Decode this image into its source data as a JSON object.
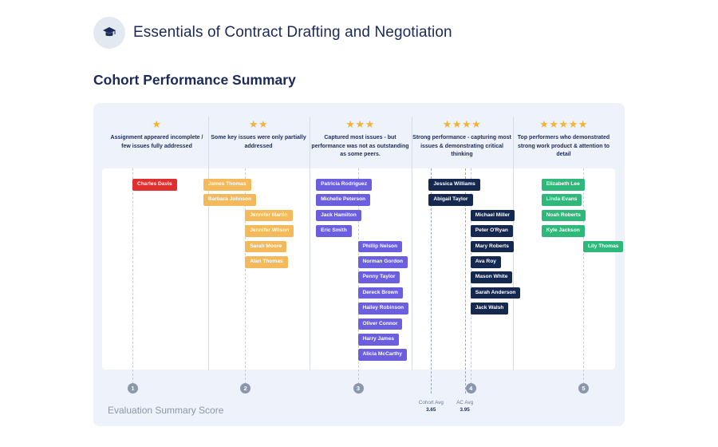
{
  "header": {
    "title": "Essentials of Contract Drafting and Negotiation",
    "icon": "graduation-cap-icon"
  },
  "section_title": "Cohort Performance Summary",
  "chart_data": {
    "type": "scatter",
    "xlabel": "Evaluation Summary Score",
    "x_ticks": [
      1,
      2,
      3,
      4,
      5
    ],
    "columns": [
      {
        "stars": "★",
        "star_count": 1,
        "text": "Assignment appeared incomplete / few issues fully addressed",
        "color": "#e02f2f"
      },
      {
        "stars": "★★",
        "star_count": 2,
        "text": "Some key issues were only partially addressed",
        "color": "#f3b95a"
      },
      {
        "stars": "★★★",
        "star_count": 3,
        "text": "Captured most issues - but performance was not as outstanding as some peers.",
        "color": "#6b5fe0"
      },
      {
        "stars": "★★★★",
        "star_count": 4,
        "text": "Strong performance - capturing most issues & demonstrating critical thinking",
        "color": "#152850"
      },
      {
        "stars": "★★★★★",
        "star_count": 5,
        "text": "Top performers who demonstrated strong work product & attention to detail",
        "color": "#2eb87a"
      }
    ],
    "points": [
      {
        "name": "Charles Davis",
        "score": 1.0,
        "band": 1
      },
      {
        "name": "James Thomas",
        "score": 1.7,
        "band": 2
      },
      {
        "name": "Barbara Johnson",
        "score": 1.7,
        "band": 2
      },
      {
        "name": "Jennifer Martin",
        "score": 2.0,
        "band": 2
      },
      {
        "name": "Jennifer Wilson",
        "score": 2.0,
        "band": 2
      },
      {
        "name": "Sarah Moore",
        "score": 2.0,
        "band": 2
      },
      {
        "name": "Alan Thomas",
        "score": 2.0,
        "band": 2
      },
      {
        "name": "Patricia Rodriguez",
        "score": 2.7,
        "band": 3
      },
      {
        "name": "Michelle Peterson",
        "score": 2.7,
        "band": 3
      },
      {
        "name": "Jack Hamilton",
        "score": 2.7,
        "band": 3
      },
      {
        "name": "Eric Smith",
        "score": 2.7,
        "band": 3
      },
      {
        "name": "Phillip Nelson",
        "score": 3.0,
        "band": 3
      },
      {
        "name": "Norman Gordon",
        "score": 3.0,
        "band": 3
      },
      {
        "name": "Penny Taylor",
        "score": 3.0,
        "band": 3
      },
      {
        "name": "Dereck Brown",
        "score": 3.0,
        "band": 3
      },
      {
        "name": "Hailey Robinson",
        "score": 3.0,
        "band": 3
      },
      {
        "name": "Oliver Connor",
        "score": 3.0,
        "band": 3
      },
      {
        "name": "Harry James",
        "score": 3.0,
        "band": 3
      },
      {
        "name": "Alicia McCarthy",
        "score": 3.0,
        "band": 3
      },
      {
        "name": "Jessica Williams",
        "score": 3.7,
        "band": 4
      },
      {
        "name": "Abigail Taylor",
        "score": 3.7,
        "band": 4
      },
      {
        "name": "Michael Miller",
        "score": 4.0,
        "band": 4
      },
      {
        "name": "Peter O'Ryan",
        "score": 4.0,
        "band": 4
      },
      {
        "name": "Mary Roberts",
        "score": 4.0,
        "band": 4
      },
      {
        "name": "Ava Roy",
        "score": 4.0,
        "band": 4
      },
      {
        "name": "Mason White",
        "score": 4.0,
        "band": 4
      },
      {
        "name": "Sarah Anderson",
        "score": 4.0,
        "band": 4
      },
      {
        "name": "Jack Walsh",
        "score": 4.0,
        "band": 4
      },
      {
        "name": "Elizabeth Lee",
        "score": 4.7,
        "band": 5
      },
      {
        "name": "Linda Evans",
        "score": 4.7,
        "band": 5
      },
      {
        "name": "Noah Roberts",
        "score": 4.7,
        "band": 5
      },
      {
        "name": "Kyle Jackson",
        "score": 4.7,
        "band": 5
      },
      {
        "name": "Lily Thomas",
        "score": 5.0,
        "band": 5
      }
    ],
    "reference_lines": [
      {
        "label": "Cohort Avg",
        "value": 3.65
      },
      {
        "label": "AC Avg",
        "value": 3.95
      }
    ]
  },
  "colors": {
    "star": "#f2b33d",
    "title": "#1c2a5a",
    "panel": "#eef3fb"
  }
}
